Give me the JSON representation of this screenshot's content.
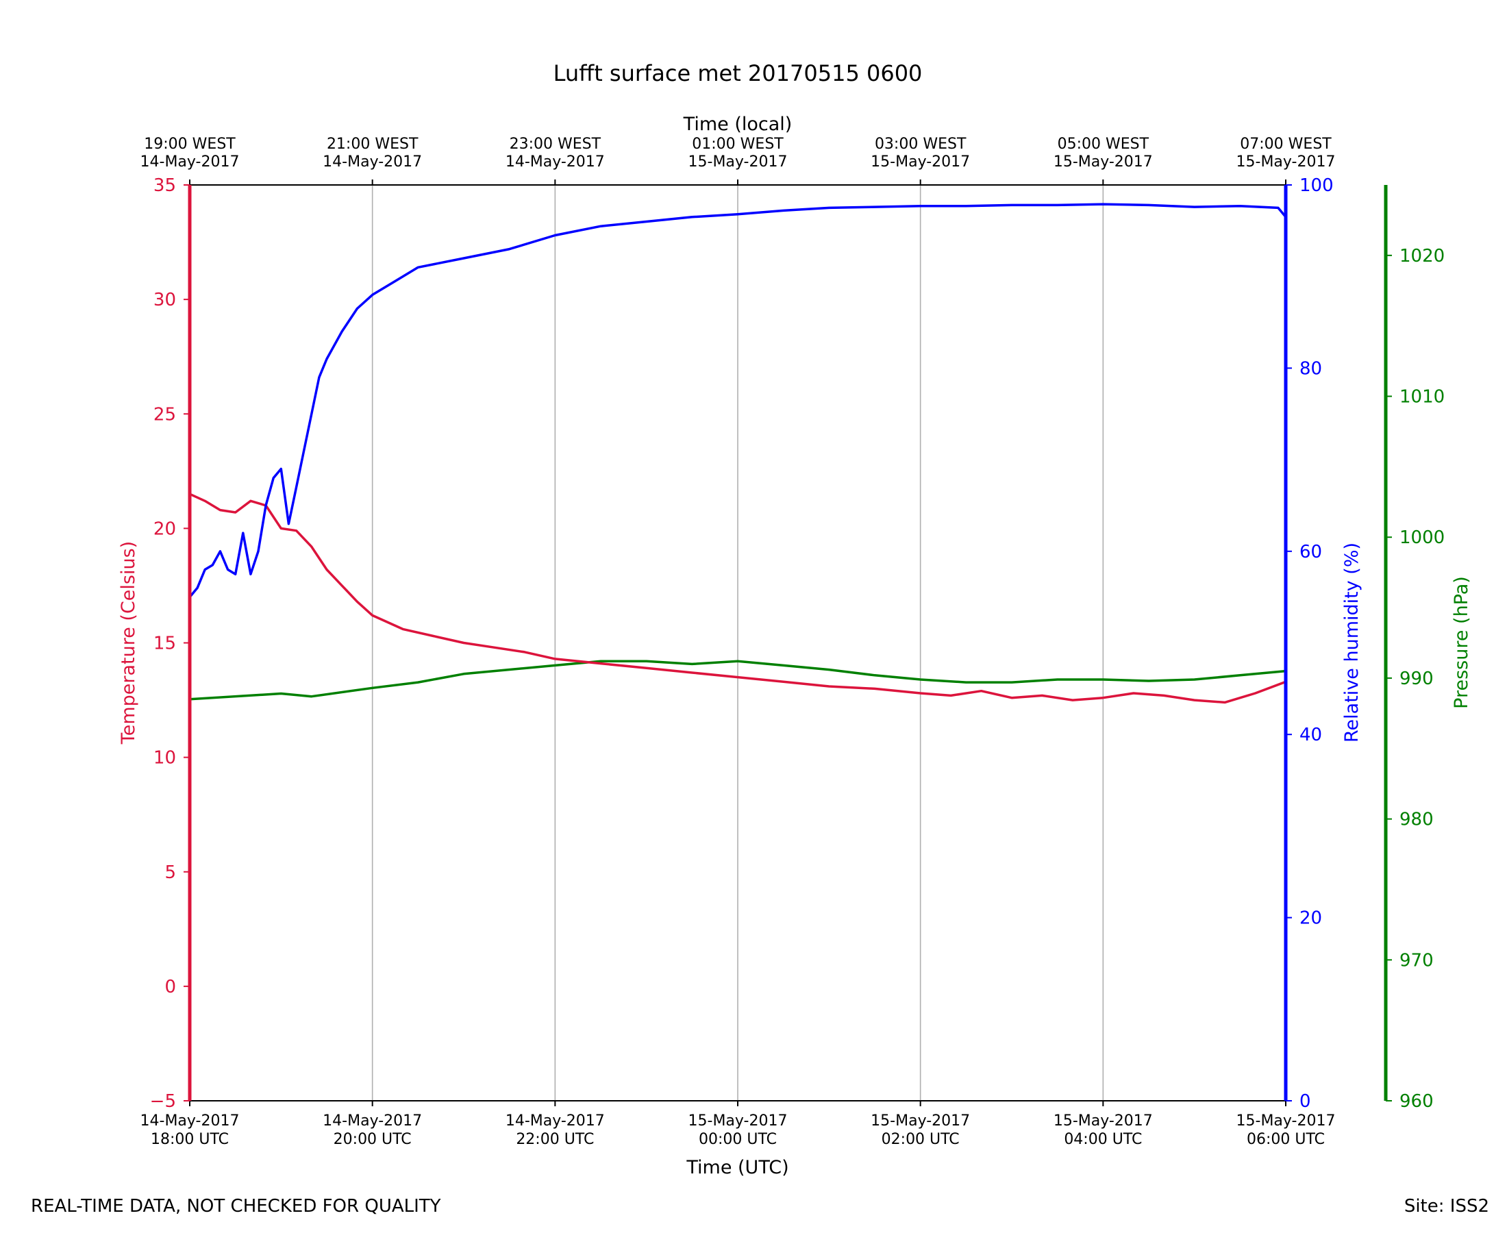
{
  "chart_data": {
    "type": "line",
    "title": "Lufft surface met 20170515 0600",
    "xlabel": "Time (UTC)",
    "x2label": "Time (local)",
    "xlim": [
      "2017-05-14T18:00Z",
      "2017-05-15T06:00Z"
    ],
    "grid": {
      "x": true,
      "y": false
    },
    "x_ticks": [
      {
        "utc": "2017-05-14T18:00Z",
        "utc_label": [
          "14-May-2017",
          "18:00 UTC"
        ],
        "local_label": [
          "19:00 WEST",
          "14-May-2017"
        ]
      },
      {
        "utc": "2017-05-14T20:00Z",
        "utc_label": [
          "14-May-2017",
          "20:00 UTC"
        ],
        "local_label": [
          "21:00 WEST",
          "14-May-2017"
        ]
      },
      {
        "utc": "2017-05-14T22:00Z",
        "utc_label": [
          "14-May-2017",
          "22:00 UTC"
        ],
        "local_label": [
          "23:00 WEST",
          "14-May-2017"
        ]
      },
      {
        "utc": "2017-05-15T00:00Z",
        "utc_label": [
          "15-May-2017",
          "00:00 UTC"
        ],
        "local_label": [
          "01:00 WEST",
          "15-May-2017"
        ]
      },
      {
        "utc": "2017-05-15T02:00Z",
        "utc_label": [
          "15-May-2017",
          "02:00 UTC"
        ],
        "local_label": [
          "03:00 WEST",
          "15-May-2017"
        ]
      },
      {
        "utc": "2017-05-15T04:00Z",
        "utc_label": [
          "15-May-2017",
          "04:00 UTC"
        ],
        "local_label": [
          "05:00 WEST",
          "15-May-2017"
        ]
      },
      {
        "utc": "2017-05-15T06:00Z",
        "utc_label": [
          "15-May-2017",
          "06:00 UTC"
        ],
        "local_label": [
          "07:00 WEST",
          "15-May-2017"
        ]
      }
    ],
    "axes": {
      "temperature": {
        "label": "Temperature (Celsius)",
        "color": "#dc143c",
        "ylim": [
          -5,
          35
        ],
        "ticks": [
          -5,
          0,
          5,
          10,
          15,
          20,
          25,
          30,
          35
        ]
      },
      "humidity": {
        "label": "Relative humidity (%)",
        "color": "#0000ff",
        "ylim": [
          0,
          100
        ],
        "ticks": [
          0,
          20,
          40,
          60,
          80,
          100
        ]
      },
      "pressure": {
        "label": "Pressure (hPa)",
        "color": "#008000",
        "ylim": [
          960,
          1025
        ],
        "ticks": [
          960,
          970,
          980,
          990,
          1000,
          1010,
          1020
        ]
      }
    },
    "series": [
      {
        "axis": "temperature",
        "color": "#dc143c",
        "x": [
          "2017-05-14T18:00Z",
          "2017-05-14T18:10Z",
          "2017-05-14T18:20Z",
          "2017-05-14T18:30Z",
          "2017-05-14T18:40Z",
          "2017-05-14T18:50Z",
          "2017-05-14T19:00Z",
          "2017-05-14T19:10Z",
          "2017-05-14T19:20Z",
          "2017-05-14T19:30Z",
          "2017-05-14T19:40Z",
          "2017-05-14T19:50Z",
          "2017-05-14T20:00Z",
          "2017-05-14T20:20Z",
          "2017-05-14T20:40Z",
          "2017-05-14T21:00Z",
          "2017-05-14T21:20Z",
          "2017-05-14T21:40Z",
          "2017-05-14T22:00Z",
          "2017-05-14T22:30Z",
          "2017-05-14T23:00Z",
          "2017-05-14T23:30Z",
          "2017-05-15T00:00Z",
          "2017-05-15T00:30Z",
          "2017-05-15T01:00Z",
          "2017-05-15T01:30Z",
          "2017-05-15T02:00Z",
          "2017-05-15T02:20Z",
          "2017-05-15T02:40Z",
          "2017-05-15T03:00Z",
          "2017-05-15T03:20Z",
          "2017-05-15T03:40Z",
          "2017-05-15T04:00Z",
          "2017-05-15T04:20Z",
          "2017-05-15T04:40Z",
          "2017-05-15T05:00Z",
          "2017-05-15T05:20Z",
          "2017-05-15T05:40Z",
          "2017-05-15T06:00Z"
        ],
        "y": [
          21.5,
          21.2,
          20.8,
          20.7,
          21.2,
          21.0,
          20.0,
          19.9,
          19.2,
          18.2,
          17.5,
          16.8,
          16.2,
          15.6,
          15.3,
          15.0,
          14.8,
          14.6,
          14.3,
          14.1,
          13.9,
          13.7,
          13.5,
          13.3,
          13.1,
          13.0,
          12.8,
          12.7,
          12.9,
          12.6,
          12.7,
          12.5,
          12.6,
          12.8,
          12.7,
          12.5,
          12.4,
          12.8,
          13.3
        ]
      },
      {
        "axis": "humidity",
        "color": "#0000ff",
        "x": [
          "2017-05-14T18:00Z",
          "2017-05-14T18:05Z",
          "2017-05-14T18:10Z",
          "2017-05-14T18:15Z",
          "2017-05-14T18:20Z",
          "2017-05-14T18:25Z",
          "2017-05-14T18:30Z",
          "2017-05-14T18:35Z",
          "2017-05-14T18:40Z",
          "2017-05-14T18:45Z",
          "2017-05-14T18:50Z",
          "2017-05-14T18:55Z",
          "2017-05-14T19:00Z",
          "2017-05-14T19:05Z",
          "2017-05-14T19:10Z",
          "2017-05-14T19:15Z",
          "2017-05-14T19:20Z",
          "2017-05-14T19:25Z",
          "2017-05-14T19:30Z",
          "2017-05-14T19:40Z",
          "2017-05-14T19:50Z",
          "2017-05-14T20:00Z",
          "2017-05-14T20:15Z",
          "2017-05-14T20:30Z",
          "2017-05-14T21:00Z",
          "2017-05-14T21:30Z",
          "2017-05-14T22:00Z",
          "2017-05-14T22:30Z",
          "2017-05-14T23:00Z",
          "2017-05-14T23:30Z",
          "2017-05-15T00:00Z",
          "2017-05-15T00:30Z",
          "2017-05-15T01:00Z",
          "2017-05-15T01:30Z",
          "2017-05-15T02:00Z",
          "2017-05-15T02:30Z",
          "2017-05-15T03:00Z",
          "2017-05-15T03:30Z",
          "2017-05-15T04:00Z",
          "2017-05-15T04:30Z",
          "2017-05-15T05:00Z",
          "2017-05-15T05:30Z",
          "2017-05-15T05:55Z",
          "2017-05-15T06:00Z"
        ],
        "y": [
          55,
          56,
          58,
          58.5,
          60,
          58,
          57.5,
          62,
          57.5,
          60,
          65,
          68,
          69,
          63,
          67,
          71,
          75,
          79,
          81,
          84,
          86.5,
          88,
          89.5,
          91,
          92,
          93,
          94.5,
          95.5,
          96,
          96.5,
          96.8,
          97.2,
          97.5,
          97.6,
          97.7,
          97.7,
          97.8,
          97.8,
          97.9,
          97.8,
          97.6,
          97.7,
          97.5,
          96.5
        ]
      },
      {
        "axis": "pressure",
        "color": "#008000",
        "x": [
          "2017-05-14T18:00Z",
          "2017-05-14T19:00Z",
          "2017-05-14T19:20Z",
          "2017-05-14T20:00Z",
          "2017-05-14T20:30Z",
          "2017-05-14T21:00Z",
          "2017-05-14T22:00Z",
          "2017-05-14T22:30Z",
          "2017-05-14T23:00Z",
          "2017-05-14T23:30Z",
          "2017-05-15T00:00Z",
          "2017-05-15T00:30Z",
          "2017-05-15T01:00Z",
          "2017-05-15T01:30Z",
          "2017-05-15T02:00Z",
          "2017-05-15T02:30Z",
          "2017-05-15T03:00Z",
          "2017-05-15T03:30Z",
          "2017-05-15T04:00Z",
          "2017-05-15T04:30Z",
          "2017-05-15T05:00Z",
          "2017-05-15T05:30Z",
          "2017-05-15T06:00Z"
        ],
        "y": [
          988.5,
          988.9,
          988.7,
          989.3,
          989.7,
          990.3,
          990.9,
          991.2,
          991.2,
          991.0,
          991.2,
          990.9,
          990.6,
          990.2,
          989.9,
          989.7,
          989.7,
          989.9,
          989.9,
          989.8,
          989.9,
          990.2,
          990.5
        ]
      }
    ],
    "footer_left": "REAL-TIME DATA, NOT CHECKED FOR QUALITY",
    "footer_right": "Site: ISS2"
  }
}
